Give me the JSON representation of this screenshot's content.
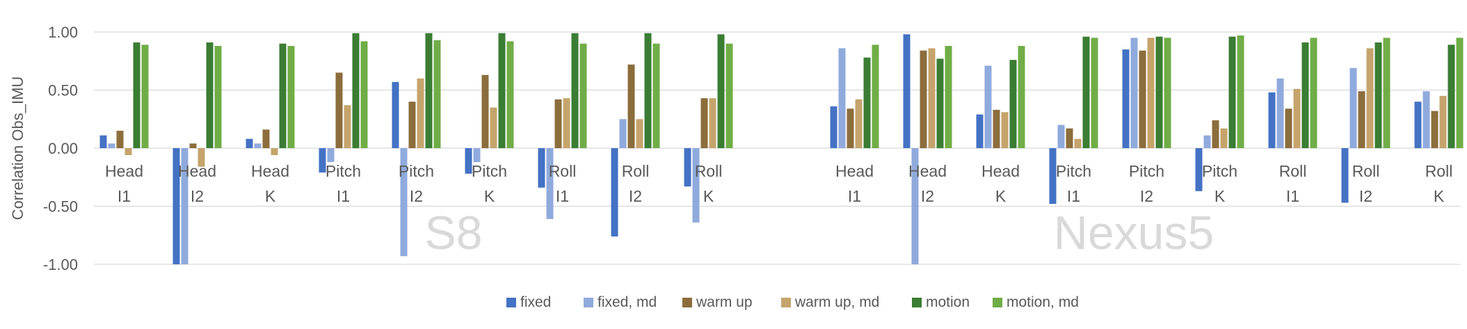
{
  "chart_data": {
    "type": "bar",
    "ylabel": "Correlation Obs_IMU",
    "ylim": [
      -1.0,
      1.0
    ],
    "yticks": [
      "1.00",
      "0.50",
      "0.00",
      "-0.50",
      "-1.00"
    ],
    "grid": true,
    "legend_position": "bottom",
    "groups": [
      {
        "label": "S8",
        "categories": [
          [
            "Head",
            "I1"
          ],
          [
            "Head",
            "I2"
          ],
          [
            "Head",
            "K"
          ],
          [
            "Pitch",
            "I1"
          ],
          [
            "Pitch",
            "I2"
          ],
          [
            "Pitch",
            "K"
          ],
          [
            "Roll",
            "I1"
          ],
          [
            "Roll",
            "I2"
          ],
          [
            "Roll",
            "K"
          ]
        ]
      },
      {
        "label": "Nexus5",
        "categories": [
          [
            "Head",
            "I1"
          ],
          [
            "Head",
            "I2"
          ],
          [
            "Head",
            "K"
          ],
          [
            "Pitch",
            "I1"
          ],
          [
            "Pitch",
            "I2"
          ],
          [
            "Pitch",
            "K"
          ],
          [
            "Roll",
            "I1"
          ],
          [
            "Roll",
            "I2"
          ],
          [
            "Roll",
            "K"
          ]
        ]
      }
    ],
    "series": [
      {
        "name": "fixed",
        "color": "#4472c4",
        "values": [
          0.11,
          -1.0,
          0.08,
          -0.21,
          0.57,
          -0.22,
          -0.34,
          -0.76,
          -0.33,
          0.36,
          0.98,
          0.29,
          -0.48,
          0.85,
          -0.37,
          0.48,
          -0.47,
          0.4
        ]
      },
      {
        "name": "fixed, md",
        "color": "#8faadc",
        "values": [
          0.04,
          -1.0,
          0.04,
          -0.12,
          -0.93,
          -0.12,
          -0.61,
          0.25,
          -0.64,
          0.86,
          -1.0,
          0.71,
          0.2,
          0.95,
          0.11,
          0.6,
          0.69,
          0.49
        ]
      },
      {
        "name": "warm up",
        "color": "#8c6d3c",
        "values": [
          0.15,
          0.04,
          0.16,
          0.65,
          0.4,
          0.63,
          0.42,
          0.72,
          0.43,
          0.34,
          0.84,
          0.33,
          0.17,
          0.84,
          0.24,
          0.34,
          0.49,
          0.32
        ]
      },
      {
        "name": "warm up, md",
        "color": "#c5a46c",
        "values": [
          -0.06,
          -0.16,
          -0.06,
          0.37,
          0.6,
          0.35,
          0.43,
          0.25,
          0.43,
          0.42,
          0.86,
          0.31,
          0.08,
          0.95,
          0.17,
          0.51,
          0.86,
          0.45
        ]
      },
      {
        "name": "motion",
        "color": "#3a7d33",
        "values": [
          0.91,
          0.91,
          0.9,
          0.99,
          0.99,
          0.99,
          0.99,
          0.99,
          0.98,
          0.78,
          0.77,
          0.76,
          0.96,
          0.96,
          0.96,
          0.91,
          0.91,
          0.89
        ]
      },
      {
        "name": "motion, md",
        "color": "#70ad47",
        "values": [
          0.89,
          0.88,
          0.88,
          0.92,
          0.93,
          0.92,
          0.9,
          0.9,
          0.9,
          0.89,
          0.88,
          0.88,
          0.95,
          0.95,
          0.97,
          0.95,
          0.95,
          0.95
        ]
      }
    ]
  }
}
